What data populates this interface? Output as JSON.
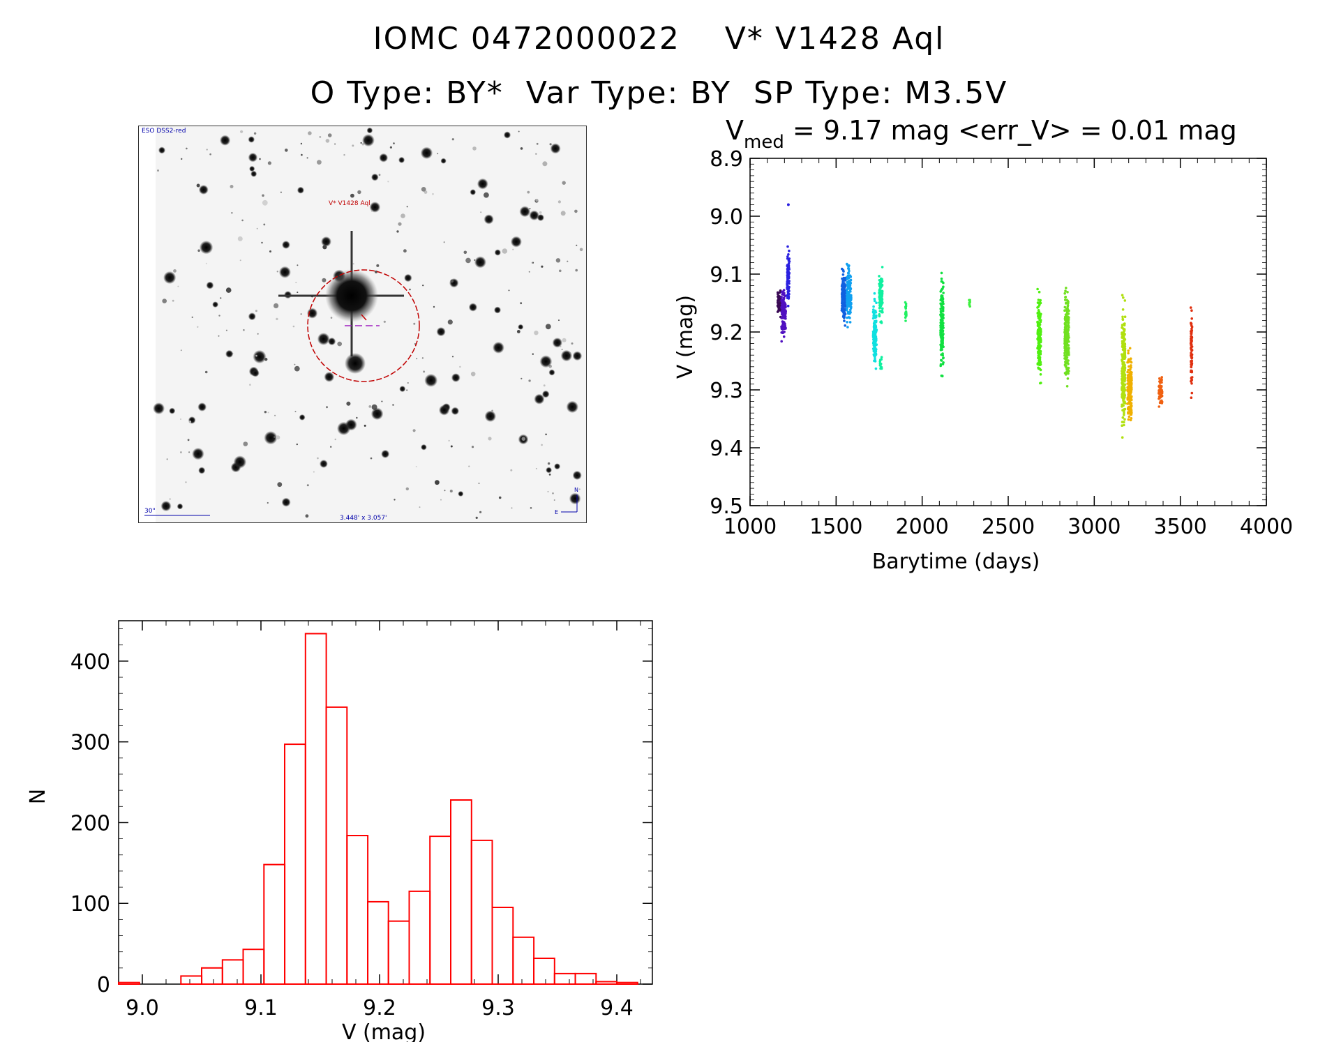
{
  "header": {
    "line1": "IOMC 0472000022    V* V1428 Aql",
    "line2": "O Type: BY*  Var Type: BY  SP Type: M3.5V"
  },
  "sky_image": {
    "survey_label": "ESO DSS2-red",
    "target_label": "V* V1428 Aql",
    "scale_label": "30\"",
    "size_label": "3.448' x 3.057'",
    "north": "N",
    "east": "E"
  },
  "chart_data": [
    {
      "type": "scatter",
      "title": "V",
      "title_sub": "med",
      "title_rest": " = 9.17 mag <err_V> = 0.01 mag",
      "xlabel": "Barytime (days)",
      "ylabel": "V (mag)",
      "xlim": [
        1000,
        4000
      ],
      "ylim": [
        9.5,
        8.9
      ],
      "xticks": [
        "1000",
        "1500",
        "2000",
        "2500",
        "3000",
        "3500",
        "4000"
      ],
      "yticks": [
        "8.9",
        "9.0",
        "9.1",
        "9.2",
        "9.3",
        "9.4",
        "9.5"
      ],
      "clusters": [
        {
          "x": 1170,
          "width": 20,
          "ymin": 9.12,
          "ymax": 9.18,
          "color": "#3a0a55"
        },
        {
          "x": 1195,
          "width": 25,
          "ymin": 9.11,
          "ymax": 9.22,
          "color": "#5010c0"
        },
        {
          "x": 1222,
          "width": 15,
          "ymin": 9.04,
          "ymax": 9.17,
          "color": "#2a20e0"
        },
        {
          "x": 1223,
          "width": 2,
          "ymin": 8.98,
          "ymax": 8.98,
          "color": "#2a20e0"
        },
        {
          "x": 1545,
          "width": 25,
          "ymin": 9.08,
          "ymax": 9.2,
          "color": "#1060e0"
        },
        {
          "x": 1575,
          "width": 25,
          "ymin": 9.06,
          "ymax": 9.2,
          "color": "#10a0f0"
        },
        {
          "x": 1725,
          "width": 20,
          "ymin": 9.12,
          "ymax": 9.28,
          "color": "#10e0e0"
        },
        {
          "x": 1760,
          "width": 20,
          "ymin": 9.08,
          "ymax": 9.2,
          "color": "#10f0a0"
        },
        {
          "x": 1760,
          "width": 10,
          "ymin": 9.24,
          "ymax": 9.27,
          "color": "#10f0a0"
        },
        {
          "x": 1905,
          "width": 6,
          "ymin": 9.14,
          "ymax": 9.19,
          "color": "#20f060"
        },
        {
          "x": 2115,
          "width": 18,
          "ymin": 9.08,
          "ymax": 9.29,
          "color": "#10e040"
        },
        {
          "x": 2275,
          "width": 6,
          "ymin": 9.14,
          "ymax": 9.16,
          "color": "#40f040"
        },
        {
          "x": 2680,
          "width": 20,
          "ymin": 9.11,
          "ymax": 9.31,
          "color": "#50f010"
        },
        {
          "x": 2840,
          "width": 25,
          "ymin": 9.11,
          "ymax": 9.31,
          "color": "#70e020"
        },
        {
          "x": 3170,
          "width": 20,
          "ymin": 9.12,
          "ymax": 9.4,
          "color": "#b0e010"
        },
        {
          "x": 3205,
          "width": 25,
          "ymin": 9.22,
          "ymax": 9.38,
          "color": "#f0b000"
        },
        {
          "x": 3385,
          "width": 20,
          "ymin": 9.27,
          "ymax": 9.34,
          "color": "#f06010"
        },
        {
          "x": 3565,
          "width": 8,
          "ymin": 9.14,
          "ymax": 9.33,
          "color": "#e03010"
        }
      ]
    },
    {
      "type": "bar",
      "xlabel": "V (mag)",
      "ylabel": "N",
      "xlim": [
        8.98,
        9.43
      ],
      "ylim": [
        0,
        450
      ],
      "xticks": [
        "9.0",
        "9.1",
        "9.2",
        "9.3",
        "9.4"
      ],
      "yticks": [
        "0",
        "100",
        "200",
        "300",
        "400"
      ],
      "bin_width": 0.0175,
      "bin_edges_start": 8.98,
      "values": [
        2,
        0,
        0,
        10,
        20,
        30,
        43,
        148,
        297,
        434,
        343,
        184,
        102,
        78,
        115,
        183,
        228,
        178,
        95,
        58,
        32,
        13,
        13,
        3,
        2
      ],
      "color": "#ff0000"
    }
  ]
}
